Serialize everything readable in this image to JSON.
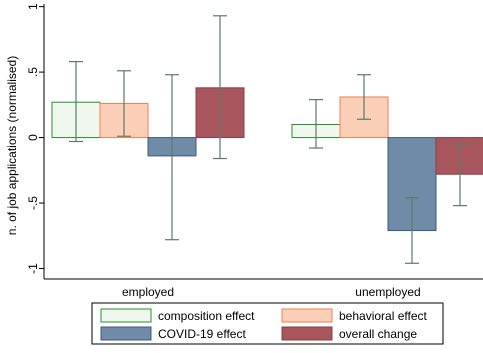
{
  "chart_data": {
    "type": "bar",
    "ylabel": "n. of job applications (normalised)",
    "ylim": [
      -1.08,
      1.02
    ],
    "yticks": [
      -1,
      -0.5,
      0,
      0.5,
      1
    ],
    "ytick_labels": [
      "-1",
      "-.5",
      "0",
      ".5",
      "1"
    ],
    "grid": false,
    "groups": [
      "employed",
      "unemployed"
    ],
    "series": [
      {
        "name": "composition effect",
        "fill": "#f0f7ef",
        "stroke": "#2e8b2e",
        "values": [
          0.27,
          0.1
        ],
        "ci": [
          [
            -0.03,
            0.58
          ],
          [
            -0.08,
            0.29
          ]
        ]
      },
      {
        "name": "behavioral effect",
        "fill": "#fcd0b8",
        "stroke": "#f08050",
        "values": [
          0.26,
          0.31
        ],
        "ci": [
          [
            0.01,
            0.51
          ],
          [
            0.14,
            0.48
          ]
        ]
      },
      {
        "name": "COVID-19 effect",
        "fill": "#6f8ba8",
        "stroke": "#3e5a7a",
        "values": [
          -0.14,
          -0.71
        ],
        "ci": [
          [
            -0.78,
            0.48
          ],
          [
            -0.96,
            -0.46
          ]
        ]
      },
      {
        "name": "overall change",
        "fill": "#a8555e",
        "stroke": "#8a3e46",
        "values": [
          0.38,
          -0.28
        ],
        "ci": [
          [
            -0.16,
            0.93
          ],
          [
            -0.52,
            -0.05
          ]
        ]
      }
    ],
    "errorbar_color": "#5d7a6a",
    "legend_position": "bottom"
  }
}
